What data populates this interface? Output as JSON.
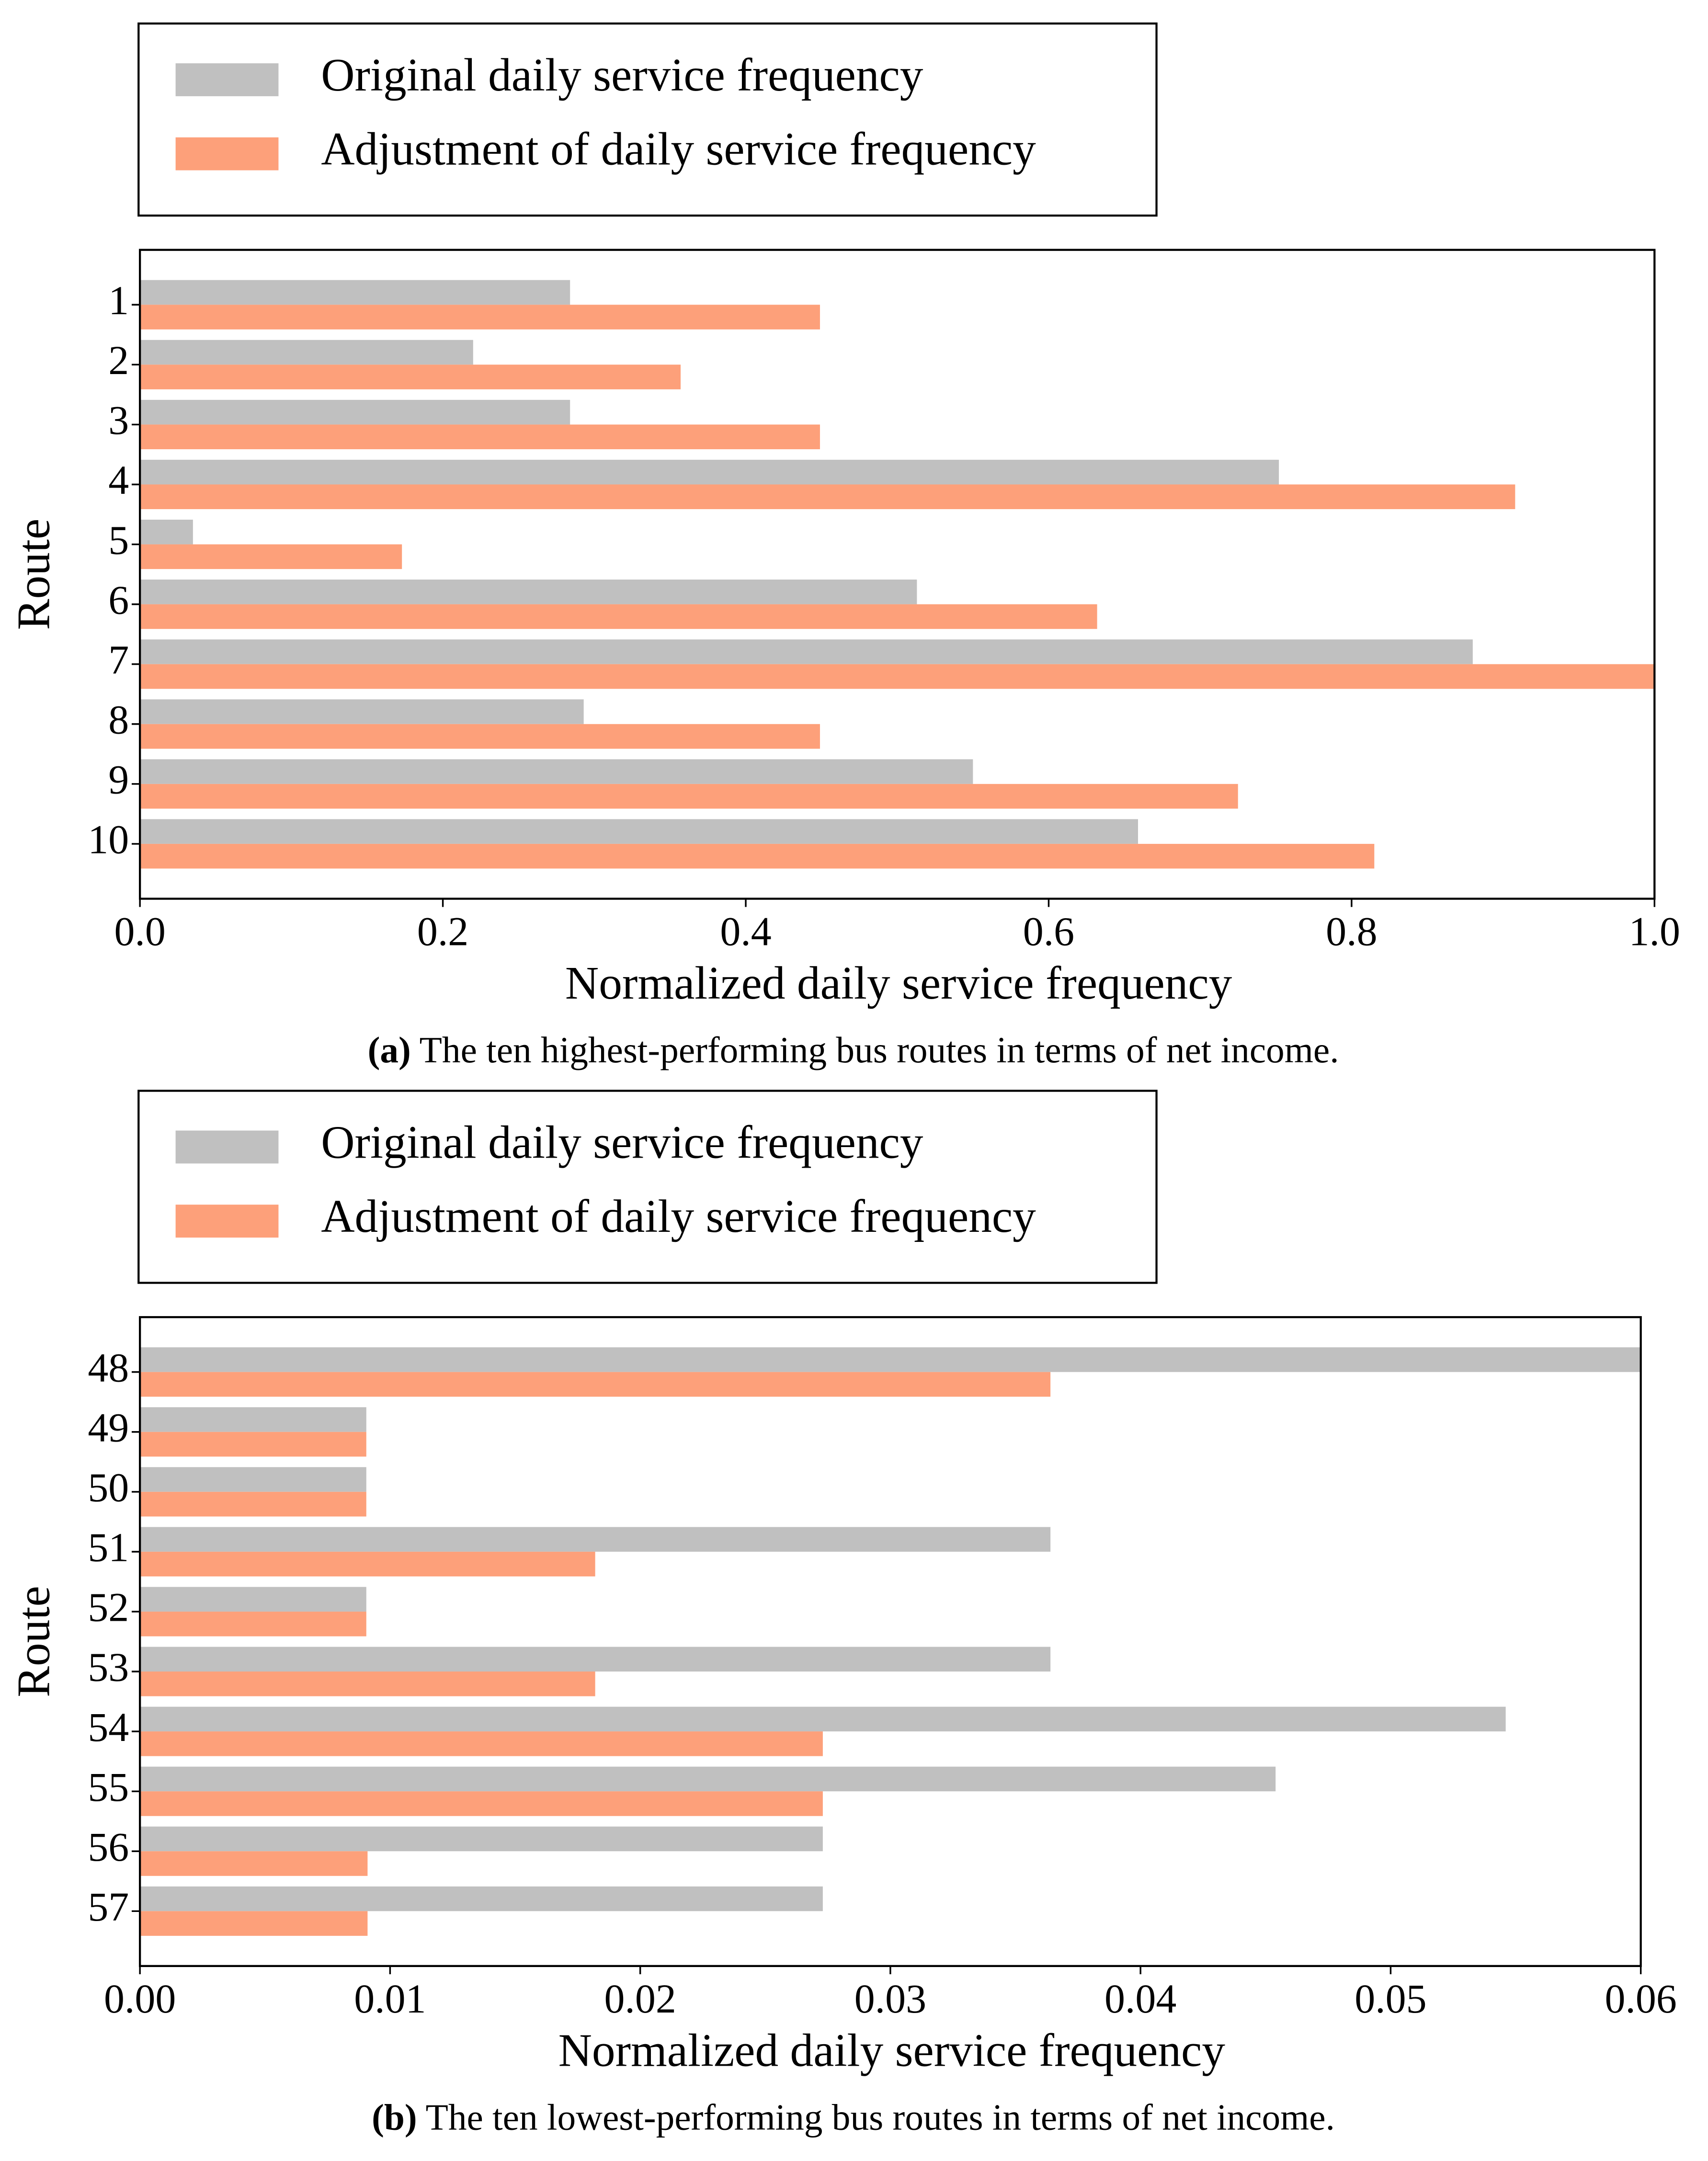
{
  "chart_data": [
    {
      "type": "barh",
      "xlabel": "Normalized daily service frequency",
      "ylabel": "Route",
      "caption_label": "(a)",
      "caption": "The ten highest-performing bus routes in terms of net income.",
      "categories": [
        "1",
        "2",
        "3",
        "4",
        "5",
        "6",
        "7",
        "8",
        "9",
        "10"
      ],
      "series": [
        {
          "name": "Original daily service frequency",
          "color": "#c0c0c0",
          "values": [
            0.284,
            0.22,
            0.284,
            0.752,
            0.035,
            0.513,
            0.88,
            0.293,
            0.55,
            0.659
          ]
        },
        {
          "name": "Adjustment of daily service frequency",
          "color": "#fda07a",
          "values": [
            0.449,
            0.357,
            0.449,
            0.908,
            0.173,
            0.632,
            1.0,
            0.449,
            0.725,
            0.815
          ]
        }
      ],
      "xlim": [
        0,
        1.0
      ],
      "xticks": [
        {
          "value": 0,
          "label": "0.0"
        },
        0.2,
        0.4,
        0.6,
        0.8,
        {
          "value": 1.0,
          "label": "1.0"
        }
      ],
      "legend": "top-outside"
    },
    {
      "type": "barh",
      "xlabel": "Normalized daily service frequency",
      "ylabel": "Route",
      "caption_label": "(b)",
      "caption": "The ten lowest-performing bus routes in terms of net income.",
      "categories": [
        "48",
        "49",
        "50",
        "51",
        "52",
        "53",
        "54",
        "55",
        "56",
        "57"
      ],
      "series": [
        {
          "name": "Original daily service frequency",
          "color": "#c0c0c0",
          "values": [
            0.06,
            0.00905,
            0.00905,
            0.0364,
            0.00905,
            0.0364,
            0.0546,
            0.0454,
            0.0273,
            0.0273
          ]
        },
        {
          "name": "Adjustment of daily service frequency",
          "color": "#fda07a",
          "values": [
            0.0364,
            0.00905,
            0.00905,
            0.0182,
            0.00905,
            0.0182,
            0.0273,
            0.0273,
            0.0091,
            0.0091
          ]
        }
      ],
      "xlim": [
        0,
        0.06
      ],
      "xticks": [
        {
          "value": 0,
          "label": "0.00"
        },
        0.01,
        0.02,
        0.03,
        0.04,
        0.05,
        0.06
      ],
      "legend": "top-outside"
    }
  ]
}
